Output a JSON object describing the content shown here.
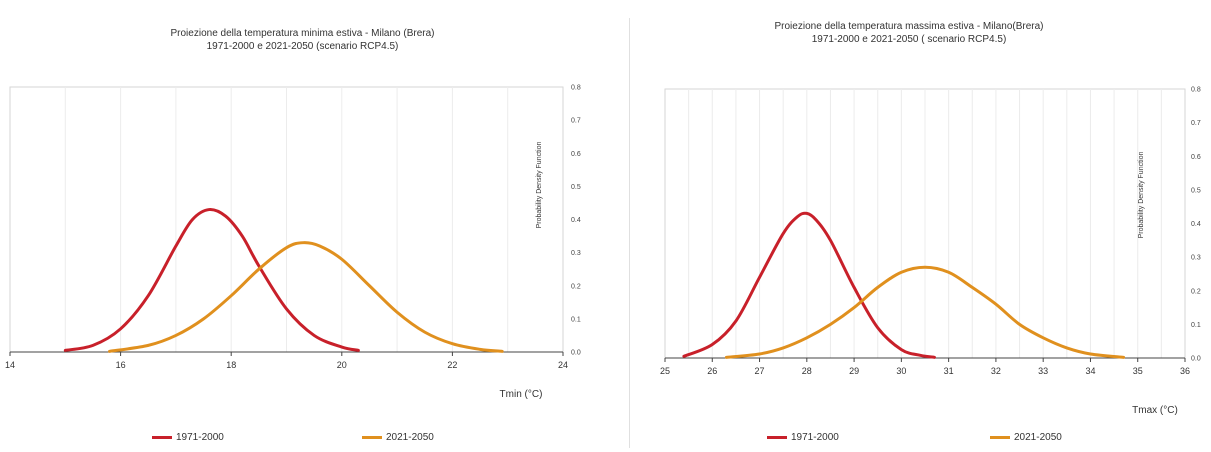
{
  "chart_data": [
    {
      "type": "line",
      "title_line1": "Proiezione  della temperatura minima estiva - Milano (Brera)",
      "title_line2": "1971-2000 e 2021-2050 (scenario RCP4.5)",
      "xlabel": "Tmin  (°C)",
      "ylabel": "Probability Density Function",
      "xlim": [
        14,
        24
      ],
      "ylim": [
        0,
        0.8
      ],
      "xticks": [
        "14",
        "16",
        "18",
        "20",
        "22",
        "24"
      ],
      "yticks": [
        "0.0",
        "0.1",
        "0.2",
        "0.3",
        "0.4",
        "0.5",
        "0.6",
        "0.7",
        "0.8"
      ],
      "grid": true,
      "legend_position": "bottom",
      "series": [
        {
          "name": "1971-2000",
          "color": "#c8202a",
          "x": [
            15.0,
            15.5,
            16.0,
            16.5,
            17.0,
            17.3,
            17.6,
            17.9,
            18.2,
            18.5,
            19.0,
            19.5,
            20.0,
            20.3
          ],
          "y": [
            0.005,
            0.02,
            0.07,
            0.17,
            0.32,
            0.4,
            0.43,
            0.41,
            0.35,
            0.26,
            0.13,
            0.05,
            0.015,
            0.005
          ]
        },
        {
          "name": "2021-2050",
          "color": "#e0901e",
          "x": [
            15.8,
            16.5,
            17.0,
            17.5,
            18.0,
            18.5,
            19.0,
            19.3,
            19.6,
            20.0,
            20.5,
            21.0,
            21.5,
            22.0,
            22.5,
            22.9
          ],
          "y": [
            0.002,
            0.02,
            0.05,
            0.1,
            0.17,
            0.25,
            0.315,
            0.33,
            0.32,
            0.28,
            0.2,
            0.12,
            0.06,
            0.025,
            0.008,
            0.002
          ]
        }
      ]
    },
    {
      "type": "line",
      "title_line1": "Proiezione della temperatura massima estiva - Milano(Brera)",
      "title_line2": "1971-2000 e 2021-2050 ( scenario RCP4.5)",
      "xlabel": "Tmax (°C)",
      "ylabel": "Probability Density Function",
      "xlim": [
        25,
        36
      ],
      "ylim": [
        0,
        0.8
      ],
      "xticks": [
        "25",
        "26",
        "27",
        "28",
        "29",
        "30",
        "31",
        "32",
        "33",
        "34",
        "35",
        "36"
      ],
      "yticks": [
        "0.0",
        "0.1",
        "0.2",
        "0.3",
        "0.4",
        "0.5",
        "0.6",
        "0.7",
        "0.8"
      ],
      "grid": true,
      "legend_position": "bottom",
      "series": [
        {
          "name": "1971-2000",
          "color": "#c8202a",
          "x": [
            25.4,
            26.0,
            26.5,
            27.0,
            27.5,
            27.8,
            28.0,
            28.2,
            28.5,
            29.0,
            29.5,
            30.0,
            30.4,
            30.7
          ],
          "y": [
            0.005,
            0.04,
            0.11,
            0.24,
            0.37,
            0.42,
            0.43,
            0.41,
            0.35,
            0.21,
            0.09,
            0.025,
            0.008,
            0.002
          ]
        },
        {
          "name": "2021-2050",
          "color": "#e0901e",
          "x": [
            26.3,
            27.0,
            27.5,
            28.0,
            28.5,
            29.0,
            29.5,
            30.0,
            30.5,
            31.0,
            31.5,
            32.0,
            32.5,
            33.0,
            33.5,
            34.0,
            34.7
          ],
          "y": [
            0.002,
            0.012,
            0.03,
            0.06,
            0.1,
            0.15,
            0.21,
            0.255,
            0.27,
            0.255,
            0.21,
            0.16,
            0.1,
            0.06,
            0.03,
            0.012,
            0.002
          ]
        }
      ]
    }
  ]
}
